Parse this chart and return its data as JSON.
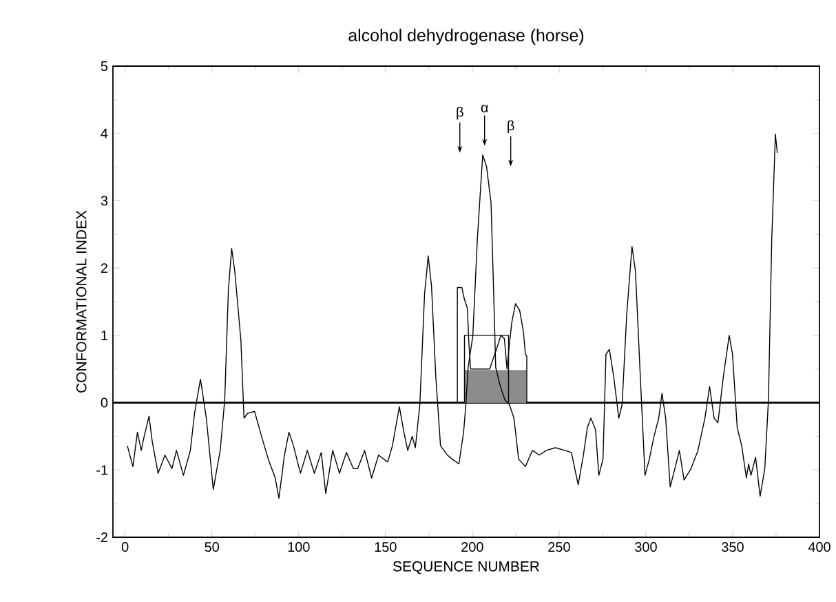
{
  "chart_data": {
    "type": "line",
    "title": "alcohol dehydrogenase (horse)",
    "xlabel": "SEQUENCE NUMBER",
    "ylabel": "CONFORMATIONAL INDEX",
    "xlim": [
      -7,
      400
    ],
    "ylim": [
      -2,
      5
    ],
    "xticks": [
      0,
      50,
      100,
      150,
      200,
      250,
      300,
      350,
      400
    ],
    "yticks": [
      -2,
      -1,
      0,
      1,
      2,
      3,
      4,
      5
    ],
    "ref_lines": [
      {
        "axis": "y",
        "value": 0,
        "color": "#000000"
      }
    ],
    "annotations": [
      "β",
      "α",
      "β"
    ],
    "series": [
      {
        "color": "#000000",
        "x": [
          1.3,
          4.5,
          7.1,
          9.3,
          11,
          13.8,
          15.6,
          19,
          23,
          27,
          29.6,
          33.6,
          37.6,
          40,
          43.4,
          46.8,
          50.8,
          54.8,
          57.4,
          59.5,
          61.4,
          63.2,
          66.7,
          68.5,
          70.6,
          74.6,
          78.6,
          82.5,
          86.5,
          88.6,
          91.8,
          94.4,
          97,
          101,
          105,
          109,
          113,
          115.6,
          119.6,
          123.5,
          127.5,
          131.5,
          134,
          138,
          142,
          146,
          151.3,
          154,
          158,
          160.6,
          162.8,
          165.4,
          167.2,
          169.8,
          172.5,
          174.6,
          176.5,
          179,
          181.7,
          185.7,
          188.4,
          192.3,
          195,
          196.3,
          197.6,
          200.3,
          202.9,
          206,
          208.2,
          210.8,
          212.2,
          213.5,
          216.2,
          218.8,
          221.4,
          224,
          226.7,
          230.6,
          234.6,
          238.6,
          242.6,
          247.9,
          253.2,
          257.1,
          261,
          264,
          266.3,
          268.3,
          271,
          272.9,
          275.3,
          277,
          279,
          281.5,
          284.4,
          286.3,
          289,
          292,
          294,
          296.8,
          299.5,
          302,
          304.7,
          307.4,
          309.3,
          311.4,
          314,
          316.7,
          319.3,
          322,
          326,
          330,
          334,
          336.7,
          339.3,
          341.5,
          344.6,
          348,
          349.9,
          352.6,
          355.2,
          357.9,
          359.2,
          360.5,
          363.2,
          365.8,
          368.5,
          370.6,
          372.5,
          374.6,
          375.7
        ],
        "values": [
          -0.64,
          -0.95,
          -0.44,
          -0.71,
          -0.5,
          -0.2,
          -0.57,
          -1.05,
          -0.78,
          -0.98,
          -0.71,
          -1.08,
          -0.71,
          -0.16,
          0.35,
          -0.23,
          -1.29,
          -0.71,
          0.04,
          1.67,
          2.29,
          1.95,
          0.93,
          -0.23,
          -0.16,
          -0.13,
          -0.5,
          -0.84,
          -1.12,
          -1.42,
          -0.78,
          -0.44,
          -0.64,
          -1.05,
          -0.71,
          -1.05,
          -0.74,
          -1.35,
          -0.71,
          -1.05,
          -0.74,
          -0.98,
          -0.98,
          -0.71,
          -1.12,
          -0.78,
          -0.88,
          -0.64,
          -0.06,
          -0.44,
          -0.71,
          -0.5,
          -0.67,
          -0.03,
          1.61,
          2.18,
          1.74,
          0.38,
          -0.64,
          -0.78,
          -0.84,
          -0.91,
          -0.44,
          -0.03,
          0.52,
          0.99,
          2.42,
          3.68,
          3.51,
          2.97,
          1.74,
          0.52,
          0.24,
          0.04,
          -0.03,
          -0.23,
          -0.84,
          -0.95,
          -0.71,
          -0.78,
          -0.71,
          -0.67,
          -0.71,
          -0.74,
          -1.22,
          -0.78,
          -0.37,
          -0.23,
          -0.4,
          -1.08,
          -0.84,
          0.72,
          0.79,
          0.38,
          -0.23,
          -0.03,
          1.33,
          2.32,
          1.95,
          0.38,
          -1.08,
          -0.84,
          -0.5,
          -0.23,
          0.14,
          -0.23,
          -1.25,
          -0.98,
          -0.71,
          -1.15,
          -0.98,
          -0.71,
          -0.23,
          0.24,
          -0.23,
          -0.3,
          0.38,
          1.0,
          0.72,
          -0.37,
          -0.64,
          -1.12,
          -0.91,
          -1.08,
          -0.81,
          -1.39,
          -0.98,
          0.04,
          2.42,
          3.99,
          3.71
        ]
      },
      {
        "color": "#000000",
        "x": [
          191.4,
          191.4,
          194,
          195.4,
          197.2,
          198,
          199,
          210,
          214,
          216.5,
          218.5,
          220,
          221.5,
          222.8,
          224.9,
          227.3,
          229.4,
          230.6,
          231.4,
          231.4
        ],
        "values": [
          0,
          1.71,
          1.71,
          1.54,
          1.4,
          0.9,
          0.5,
          0.5,
          0.8,
          1.0,
          0.95,
          0.5,
          0.9,
          1.2,
          1.47,
          1.37,
          1.06,
          0.72,
          0.69,
          0
        ]
      },
      {
        "color": "#000000",
        "x": [
          195.5,
          195.5,
          220.9,
          220.9
        ],
        "values": [
          0,
          1.0,
          1.0,
          0
        ]
      },
      {
        "type": "area",
        "color": "#8c8c8c",
        "x": [
          195.5,
          231
        ],
        "values": [
          0.48,
          0.48
        ]
      }
    ]
  }
}
